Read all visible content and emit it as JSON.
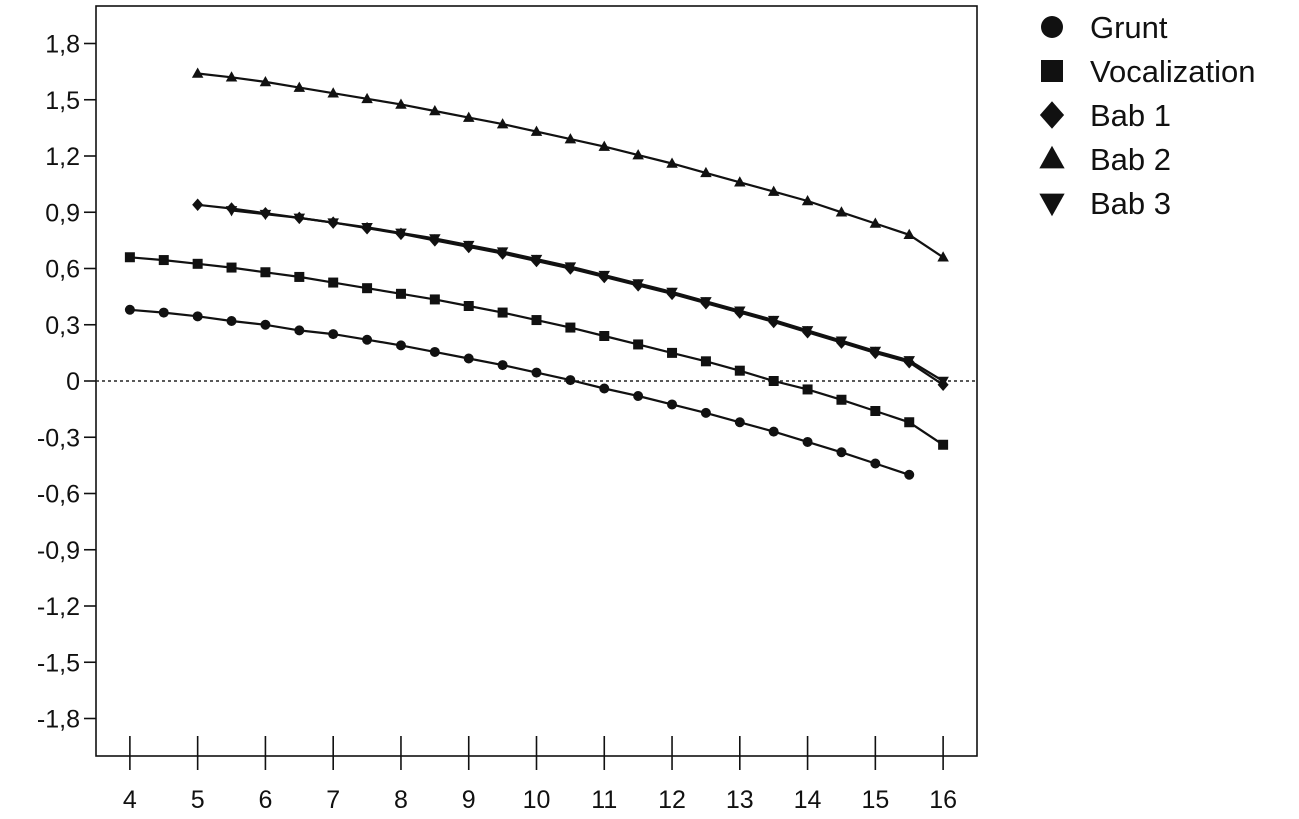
{
  "chart_data": {
    "type": "line",
    "title": "",
    "xlabel": "",
    "ylabel": "",
    "xlim": [
      3.5,
      16.5
    ],
    "ylim": [
      -2.0,
      2.0
    ],
    "x_ticks": [
      4,
      5,
      6,
      7,
      8,
      9,
      10,
      11,
      12,
      13,
      14,
      15,
      16
    ],
    "x_tick_labels": [
      "4",
      "5",
      "6",
      "7",
      "8",
      "9",
      "10",
      "11",
      "12",
      "13",
      "14",
      "15",
      "16"
    ],
    "y_ticks": [
      1.8,
      1.5,
      1.2,
      0.9,
      0.6,
      0.3,
      0,
      -0.3,
      -0.6,
      -0.9,
      -1.2,
      -1.5,
      -1.8
    ],
    "y_tick_labels": [
      "1,8",
      "1,5",
      "1,2",
      "0,9",
      "0,6",
      "0,3",
      "0",
      "-0,3",
      "-0,6",
      "-0,9",
      "-1,2",
      "-1,5",
      "-1,8"
    ],
    "grid": false,
    "reference_line": {
      "y": 0,
      "style": "dotted"
    },
    "legend": {
      "position": "top-right"
    },
    "series": [
      {
        "name": "Grunt",
        "marker": "circle",
        "x": [
          4.0,
          4.5,
          5.0,
          5.5,
          6.0,
          6.5,
          7.0,
          7.5,
          8.0,
          8.5,
          9.0,
          9.5,
          10.0,
          10.5,
          11.0,
          11.5,
          12.0,
          12.5,
          13.0,
          13.5,
          14.0,
          14.5,
          15.0,
          15.5
        ],
        "y": [
          0.38,
          0.365,
          0.345,
          0.32,
          0.3,
          0.27,
          0.25,
          0.22,
          0.19,
          0.155,
          0.12,
          0.085,
          0.045,
          0.005,
          -0.04,
          -0.08,
          -0.125,
          -0.17,
          -0.22,
          -0.27,
          -0.325,
          -0.38,
          -0.44,
          -0.5
        ]
      },
      {
        "name": "Vocalization",
        "marker": "square",
        "x": [
          4.0,
          4.5,
          5.0,
          5.5,
          6.0,
          6.5,
          7.0,
          7.5,
          8.0,
          8.5,
          9.0,
          9.5,
          10.0,
          10.5,
          11.0,
          11.5,
          12.0,
          12.5,
          13.0,
          13.5,
          14.0,
          14.5,
          15.0,
          15.5,
          16.0
        ],
        "y": [
          0.66,
          0.645,
          0.625,
          0.605,
          0.58,
          0.555,
          0.525,
          0.495,
          0.465,
          0.435,
          0.4,
          0.365,
          0.325,
          0.285,
          0.24,
          0.195,
          0.15,
          0.105,
          0.055,
          0.0,
          -0.045,
          -0.1,
          -0.16,
          -0.22,
          -0.34
        ]
      },
      {
        "name": "Bab 1",
        "marker": "diamond",
        "x": [
          5.0,
          5.5,
          6.0,
          6.5,
          7.0,
          7.5,
          8.0,
          8.5,
          9.0,
          9.5,
          10.0,
          10.5,
          11.0,
          11.5,
          12.0,
          12.5,
          13.0,
          13.5,
          14.0,
          14.5,
          15.0,
          15.5,
          16.0
        ],
        "y": [
          0.94,
          0.92,
          0.895,
          0.87,
          0.845,
          0.815,
          0.785,
          0.75,
          0.715,
          0.68,
          0.64,
          0.6,
          0.555,
          0.51,
          0.465,
          0.415,
          0.365,
          0.315,
          0.26,
          0.205,
          0.15,
          0.1,
          -0.02
        ]
      },
      {
        "name": "Bab 2",
        "marker": "triangle-up",
        "x": [
          5.0,
          5.5,
          6.0,
          6.5,
          7.0,
          7.5,
          8.0,
          8.5,
          9.0,
          9.5,
          10.0,
          10.5,
          11.0,
          11.5,
          12.0,
          12.5,
          13.0,
          13.5,
          14.0,
          14.5,
          15.0,
          15.5,
          16.0
        ],
        "y": [
          1.64,
          1.62,
          1.595,
          1.565,
          1.535,
          1.505,
          1.475,
          1.44,
          1.405,
          1.37,
          1.33,
          1.29,
          1.25,
          1.205,
          1.16,
          1.11,
          1.06,
          1.01,
          0.96,
          0.9,
          0.84,
          0.78,
          0.66
        ]
      },
      {
        "name": "Bab 3",
        "marker": "triangle-down",
        "x": [
          5.5,
          6.0,
          6.5,
          7.0,
          7.5,
          8.0,
          8.5,
          9.0,
          9.5,
          10.0,
          10.5,
          11.0,
          11.5,
          12.0,
          12.5,
          13.0,
          13.5,
          14.0,
          14.5,
          15.0,
          15.5,
          16.0
        ],
        "y": [
          0.91,
          0.89,
          0.87,
          0.845,
          0.82,
          0.79,
          0.76,
          0.725,
          0.69,
          0.65,
          0.61,
          0.565,
          0.52,
          0.475,
          0.425,
          0.375,
          0.325,
          0.27,
          0.215,
          0.16,
          0.11,
          0.0
        ]
      }
    ]
  }
}
